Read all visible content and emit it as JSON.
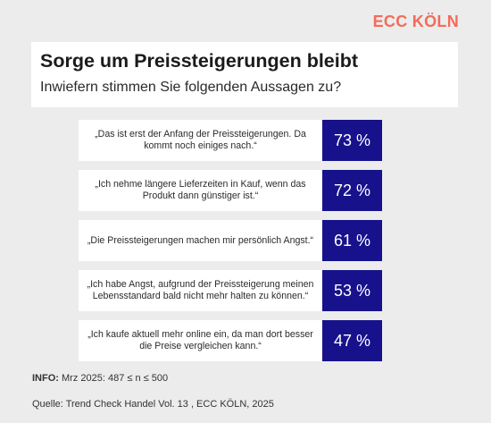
{
  "brand": "ECC KÖLN",
  "chart_data": {
    "type": "bar",
    "title": "Sorge um Preissteigerungen bleibt",
    "subtitle": "Inwiefern stimmen Sie folgenden Aussagen zu?",
    "unit": "%",
    "categories": [
      "„Das ist erst der Anfang der Preissteigerungen. Da kommt noch einiges nach.“",
      "„Ich nehme längere Lieferzeiten in Kauf, wenn das Produkt dann günstiger ist.“",
      "„Die Preissteigerungen machen mir persönlich Angst.“",
      "„Ich habe Angst, aufgrund der Preissteigerung meinen Lebensstandard bald nicht mehr halten zu können.“",
      "„Ich kaufe aktuell mehr online ein, da man dort besser die Preise vergleichen kann.“"
    ],
    "values": [
      73,
      72,
      61,
      53,
      47
    ],
    "labels": [
      "73 %",
      "72 %",
      "61 %",
      "53 %",
      "47 %"
    ],
    "colors": {
      "value_box": "#17128c",
      "brand": "#f26c5b"
    }
  },
  "footer": {
    "info_label": "INFO:",
    "info_text": "Mrz 2025: 487 ≤ n ≤ 500",
    "source": "Quelle: Trend Check Handel Vol. 13 , ECC KÖLN, 2025"
  }
}
